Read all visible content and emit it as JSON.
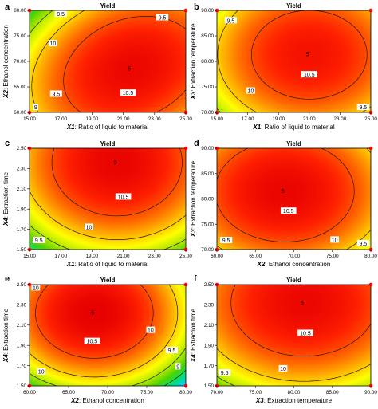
{
  "figure": {
    "colormap": [
      "#00c8ff",
      "#00e07a",
      "#4cd400",
      "#b2e800",
      "#ffff00",
      "#ffb400",
      "#ff6400",
      "#ff2000",
      "#e60000"
    ],
    "contour_color": "#1a1a1a",
    "corner_marker_color": "#ff0000"
  },
  "chart_data": [
    {
      "panel": "a",
      "type": "heatmap",
      "title": "Yield",
      "xlabel_var": "X1",
      "xlabel_text": ": Ratio of liquid to material",
      "ylabel_var": "X2",
      "ylabel_text": ": Ethanol concentration",
      "xticks": [
        "15.00",
        "17.00",
        "19.00",
        "21.00",
        "23.00",
        "25.00"
      ],
      "yticks": [
        "60.00",
        "65.00",
        "70.00",
        "75.00",
        "80.00"
      ],
      "xlim": [
        15,
        25
      ],
      "ylim": [
        60,
        80
      ],
      "center_label": "5",
      "contours": [
        {
          "label": "9.5",
          "value": 9.5,
          "label_at": [
            17.0,
            79.3
          ]
        },
        {
          "label": "9.5",
          "value": 9.5,
          "label_at": [
            23.5,
            78.6
          ]
        },
        {
          "label": "10",
          "value": 10,
          "label_at": [
            16.5,
            73.5
          ]
        },
        {
          "label": "10.5",
          "value": 10.5,
          "label_at": [
            21.3,
            63.8
          ]
        },
        {
          "label": "9.5",
          "value": 9.5,
          "label_at": [
            16.7,
            63.6
          ]
        },
        {
          "label": "9",
          "value": 9,
          "label_at": [
            15.4,
            61.0
          ]
        }
      ],
      "model": {
        "peak": 10.93,
        "cx": 21.5,
        "cy": 68.5,
        "a": 0.0242,
        "b": 0.00422,
        "c": -0.0045
      }
    },
    {
      "panel": "b",
      "type": "heatmap",
      "title": "Yield",
      "xlabel_var": "X1",
      "xlabel_text": ": Ratio of liquid to material",
      "ylabel_var": "X3",
      "ylabel_text": ": Extraction temperature",
      "xticks": [
        "15.00",
        "17.00",
        "19.00",
        "21.00",
        "23.00",
        "25.00"
      ],
      "yticks": [
        "70.00",
        "75.00",
        "80.00",
        "85.00",
        "90.00"
      ],
      "xlim": [
        15,
        25
      ],
      "ylim": [
        70,
        90
      ],
      "center_label": "5",
      "contours": [
        {
          "label": "9.5",
          "value": 9.5,
          "label_at": [
            15.9,
            88.0
          ]
        },
        {
          "label": "10",
          "value": 10,
          "label_at": [
            17.2,
            74.2
          ]
        },
        {
          "label": "10.5",
          "value": 10.5,
          "label_at": [
            21.0,
            77.4
          ]
        },
        {
          "label": "9.5",
          "value": 9.5,
          "label_at": [
            24.5,
            71.0
          ]
        }
      ],
      "model": {
        "peak": 10.83,
        "cx": 21.0,
        "cy": 81.3,
        "a": 0.0234,
        "b": 0.00436,
        "c": 0.0
      }
    },
    {
      "panel": "c",
      "type": "heatmap",
      "title": "Yield",
      "xlabel_var": "X1",
      "xlabel_text": ": Ratio of liquid to material",
      "ylabel_var": "X4",
      "ylabel_text": ": Extraction time",
      "xticks": [
        "15.00",
        "17.00",
        "19.00",
        "21.00",
        "23.00",
        "25.00"
      ],
      "yticks": [
        "1.50",
        "1.70",
        "1.90",
        "2.10",
        "2.30",
        "2.50"
      ],
      "xlim": [
        15,
        25
      ],
      "ylim": [
        1.5,
        2.5
      ],
      "center_label": "5",
      "contours": [
        {
          "label": "10.5",
          "value": 10.5,
          "label_at": [
            21.0,
            2.02
          ]
        },
        {
          "label": "10",
          "value": 10,
          "label_at": [
            18.8,
            1.72
          ]
        },
        {
          "label": "9.5",
          "value": 9.5,
          "label_at": [
            15.6,
            1.59
          ]
        }
      ],
      "model": {
        "peak": 10.96,
        "cx": 20.6,
        "cy": 2.36,
        "a": 0.0265,
        "b": 1.65,
        "c": 0.0
      }
    },
    {
      "panel": "d",
      "type": "heatmap",
      "title": "Yield",
      "xlabel_var": "X2",
      "xlabel_text": ": Ethanol concentration",
      "ylabel_var": "X3",
      "ylabel_text": ": Extraction temperature",
      "xticks": [
        "60.00",
        "65.00",
        "70.00",
        "75.00",
        "80.00"
      ],
      "yticks": [
        "70.00",
        "75.00",
        "80.00",
        "85.00",
        "90.00"
      ],
      "xlim": [
        60,
        80
      ],
      "ylim": [
        70,
        90
      ],
      "center_label": "5",
      "contours": [
        {
          "label": "10.5",
          "value": 10.5,
          "label_at": [
            69.3,
            77.6
          ]
        },
        {
          "label": "10",
          "value": 10,
          "label_at": [
            75.3,
            71.9
          ]
        },
        {
          "label": "9.5",
          "value": 9.5,
          "label_at": [
            61.2,
            71.8
          ]
        },
        {
          "label": "9.5",
          "value": 9.5,
          "label_at": [
            79.0,
            71.2
          ]
        }
      ],
      "model": {
        "peak": 10.95,
        "cx": 68.8,
        "cy": 81.5,
        "a": 0.0055,
        "b": 0.0045,
        "c": 0.0
      }
    },
    {
      "panel": "e",
      "type": "heatmap",
      "title": "Yield",
      "xlabel_var": "X2",
      "xlabel_text": ": Ethanol concentration",
      "ylabel_var": "X4",
      "ylabel_text": ": Extraction time",
      "xticks": [
        "60.00",
        "65.00",
        "70.00",
        "75.00",
        "80.00"
      ],
      "yticks": [
        "1.50",
        "1.70",
        "1.90",
        "2.10",
        "2.30",
        "2.50"
      ],
      "xlim": [
        60,
        80
      ],
      "ylim": [
        1.5,
        2.5
      ],
      "center_label": "5",
      "contours": [
        {
          "label": "10",
          "value": 10,
          "label_at": [
            60.8,
            2.47
          ]
        },
        {
          "label": "10.5",
          "value": 10.5,
          "label_at": [
            68.0,
            1.94
          ]
        },
        {
          "label": "10",
          "value": 10,
          "label_at": [
            75.5,
            2.05
          ]
        },
        {
          "label": "9.5",
          "value": 9.5,
          "label_at": [
            78.2,
            1.85
          ]
        },
        {
          "label": "9",
          "value": 9,
          "label_at": [
            79.0,
            1.69
          ]
        },
        {
          "label": "10",
          "value": 10,
          "label_at": [
            61.5,
            1.64
          ]
        }
      ],
      "model": {
        "peak": 11.0,
        "cx": 68.3,
        "cy": 2.22,
        "a": 0.0088,
        "b": 2.5,
        "c": 0.0
      }
    },
    {
      "panel": "f",
      "type": "heatmap",
      "title": "Yield",
      "xlabel_var": "X3",
      "xlabel_text": ": Extraction temperature",
      "ylabel_var": "X4",
      "ylabel_text": ": Extraction time",
      "xticks": [
        "70.00",
        "75.00",
        "80.00",
        "85.00",
        "90.00"
      ],
      "yticks": [
        "1.50",
        "1.70",
        "1.90",
        "2.10",
        "2.30",
        "2.50"
      ],
      "xlim": [
        70,
        90
      ],
      "ylim": [
        1.5,
        2.5
      ],
      "center_label": "5",
      "contours": [
        {
          "label": "10.5",
          "value": 10.5,
          "label_at": [
            81.5,
            2.02
          ]
        },
        {
          "label": "10",
          "value": 10,
          "label_at": [
            78.6,
            1.67
          ]
        },
        {
          "label": "9.5",
          "value": 9.5,
          "label_at": [
            71.0,
            1.63
          ]
        }
      ],
      "model": {
        "peak": 10.93,
        "cx": 81.3,
        "cy": 2.32,
        "a": 0.0048,
        "b": 1.55,
        "c": 0.0
      }
    }
  ]
}
